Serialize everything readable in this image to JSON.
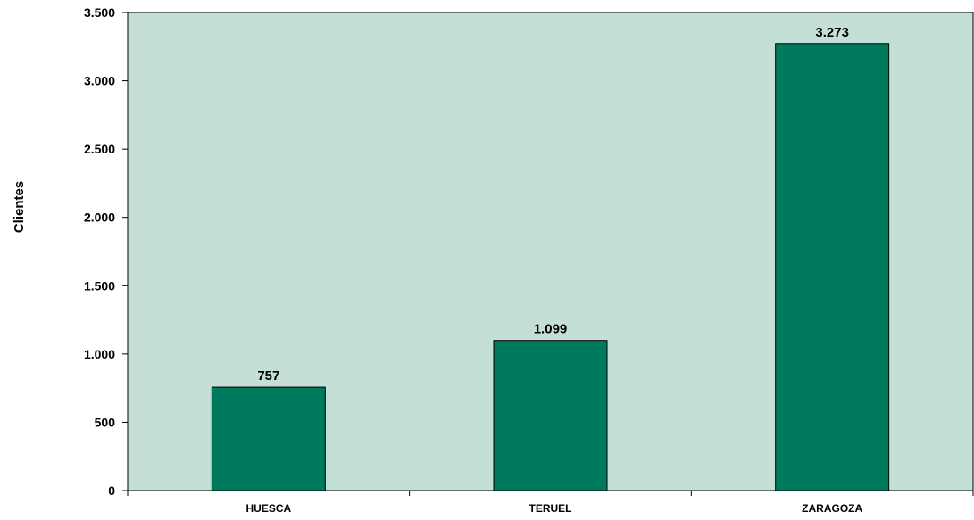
{
  "chart_data": {
    "type": "bar",
    "categories": [
      "HUESCA",
      "TERUEL",
      "ZARAGOZA"
    ],
    "values": [
      757,
      1099,
      3273
    ],
    "data_labels": [
      "757",
      "1.099",
      "3.273"
    ],
    "title": "",
    "xlabel": "",
    "ylabel": "Clientes",
    "ylim": [
      0,
      3500
    ],
    "yticks": [
      0,
      500,
      1000,
      1500,
      2000,
      2500,
      3000,
      3500
    ],
    "ytick_labels": [
      "0",
      "500",
      "1.000",
      "1.500",
      "2.000",
      "2.500",
      "3.000",
      "3.500"
    ],
    "grid": false,
    "legend": "none",
    "colors": {
      "plot_background": "#c3dfd6",
      "bar_fill": "#007a5c",
      "bar_stroke": "#000000",
      "axis": "#000000"
    }
  }
}
